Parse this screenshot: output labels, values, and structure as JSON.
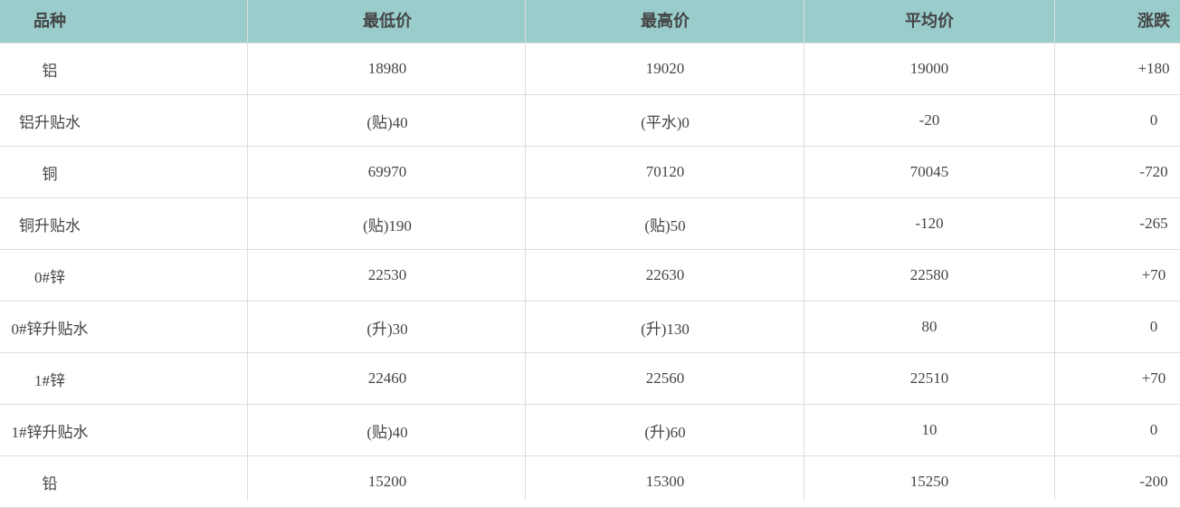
{
  "columns": [
    "品种",
    "最低价",
    "最高价",
    "平均价",
    "涨跌"
  ],
  "rows": [
    [
      "铝",
      "18980",
      "19020",
      "19000",
      "+180"
    ],
    [
      "铝升贴水",
      "(贴)40",
      "(平水)0",
      "-20",
      "0"
    ],
    [
      "铜",
      "69970",
      "70120",
      "70045",
      "-720"
    ],
    [
      "铜升贴水",
      "(贴)190",
      "(贴)50",
      "-120",
      "-265"
    ],
    [
      "0#锌",
      "22530",
      "22630",
      "22580",
      "+70"
    ],
    [
      "0#锌升贴水",
      "(升)30",
      "(升)130",
      "80",
      "0"
    ],
    [
      "1#锌",
      "22460",
      "22560",
      "22510",
      "+70"
    ],
    [
      "1#锌升贴水",
      "(贴)40",
      "(升)60",
      "10",
      "0"
    ],
    [
      "铅",
      "15200",
      "15300",
      "15250",
      "-200"
    ]
  ],
  "colors": {
    "header_bg": "#9acccc",
    "border": "#dddddd",
    "text": "#444444"
  }
}
